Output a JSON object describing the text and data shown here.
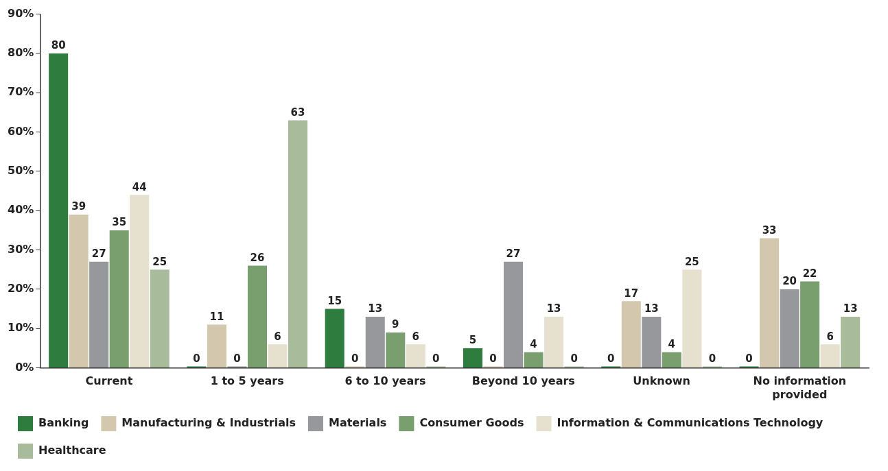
{
  "chart_data": {
    "type": "bar",
    "categories": [
      "Current",
      "1 to 5 years",
      "6 to 10 years",
      "Beyond 10 years",
      "Unknown",
      "No information provided"
    ],
    "series": [
      {
        "name": "Banking",
        "color": "#2e7d3e",
        "values": [
          80,
          0,
          15,
          5,
          0,
          0
        ]
      },
      {
        "name": "Manufacturing & Industrials",
        "color": "#d3c8ad",
        "values": [
          39,
          11,
          0,
          0,
          17,
          33
        ]
      },
      {
        "name": "Materials",
        "color": "#97989c",
        "values": [
          27,
          0,
          13,
          27,
          13,
          20
        ]
      },
      {
        "name": "Consumer Goods",
        "color": "#7a9f6f",
        "values": [
          35,
          26,
          9,
          4,
          4,
          22
        ]
      },
      {
        "name": "Information & Communications Technology",
        "color": "#e6e0cf",
        "values": [
          44,
          6,
          6,
          13,
          25,
          6
        ]
      },
      {
        "name": "Healthcare",
        "color": "#a8bc9c",
        "values": [
          25,
          63,
          0,
          0,
          0,
          13
        ]
      }
    ],
    "ylim": [
      0,
      90
    ],
    "yticks": [
      {
        "value": 0,
        "label": "0%"
      },
      {
        "value": 10,
        "label": "10%"
      },
      {
        "value": 20,
        "label": "20%"
      },
      {
        "value": 30,
        "label": "30%"
      },
      {
        "value": 40,
        "label": "40%"
      },
      {
        "value": 50,
        "label": "50%"
      },
      {
        "value": 60,
        "label": "60%"
      },
      {
        "value": 70,
        "label": "70%"
      },
      {
        "value": 80,
        "label": "80%"
      },
      {
        "value": 90,
        "label": "90%"
      }
    ],
    "grid": false,
    "legend": "bottom",
    "data_labels": true
  }
}
